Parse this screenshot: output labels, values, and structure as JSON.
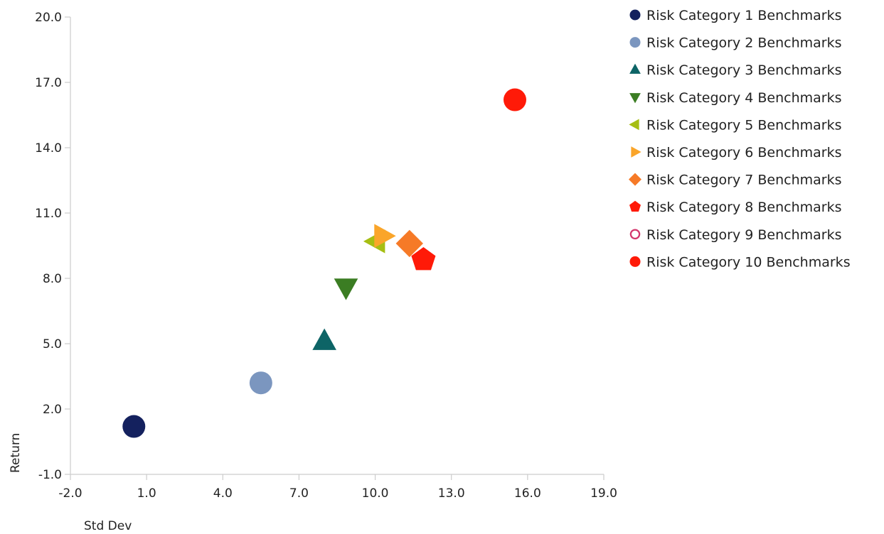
{
  "chart_data": {
    "type": "scatter",
    "xlabel": "Std Dev",
    "ylabel": "Return",
    "xlim": [
      -2,
      19
    ],
    "ylim": [
      -1,
      20
    ],
    "xticks": [
      "-2.0",
      "1.0",
      "4.0",
      "7.0",
      "10.0",
      "13.0",
      "16.0",
      "19.0"
    ],
    "yticks": [
      "-1.0",
      "2.0",
      "5.0",
      "8.0",
      "11.0",
      "14.0",
      "17.0",
      "20.0"
    ],
    "grid": false,
    "legend": "right",
    "series": [
      {
        "name": "Risk Category 1 Benchmarks",
        "marker": "circle",
        "color": "#14215e",
        "x": 0.5,
        "y": 1.2
      },
      {
        "name": "Risk Category 2 Benchmarks",
        "marker": "circle",
        "color": "#7b96bf",
        "x": 5.5,
        "y": 3.2
      },
      {
        "name": "Risk Category 3 Benchmarks",
        "marker": "triangle-up",
        "color": "#0d6466",
        "x": 8.0,
        "y": 5.1
      },
      {
        "name": "Risk Category 4 Benchmarks",
        "marker": "triangle-down",
        "color": "#3b7d23",
        "x": 8.85,
        "y": 7.6
      },
      {
        "name": "Risk Category 5 Benchmarks",
        "marker": "triangle-left",
        "color": "#a6be13",
        "x": 10.05,
        "y": 9.7
      },
      {
        "name": "Risk Category 6 Benchmarks",
        "marker": "triangle-right",
        "color": "#faa52a",
        "x": 10.3,
        "y": 9.95
      },
      {
        "name": "Risk Category 7 Benchmarks",
        "marker": "diamond",
        "color": "#f67a27",
        "x": 11.35,
        "y": 9.6
      },
      {
        "name": "Risk Category 8 Benchmarks",
        "marker": "pentagon",
        "color": "#ff1a08",
        "x": 11.9,
        "y": 8.85
      },
      {
        "name": "Risk Category 9 Benchmarks",
        "marker": "circle-open",
        "color": "#d3376d",
        "x": 15.5,
        "y": 16.2
      },
      {
        "name": "Risk Category 10 Benchmarks",
        "marker": "circle",
        "color": "#ff1a08",
        "x": 15.5,
        "y": 16.2
      }
    ]
  }
}
